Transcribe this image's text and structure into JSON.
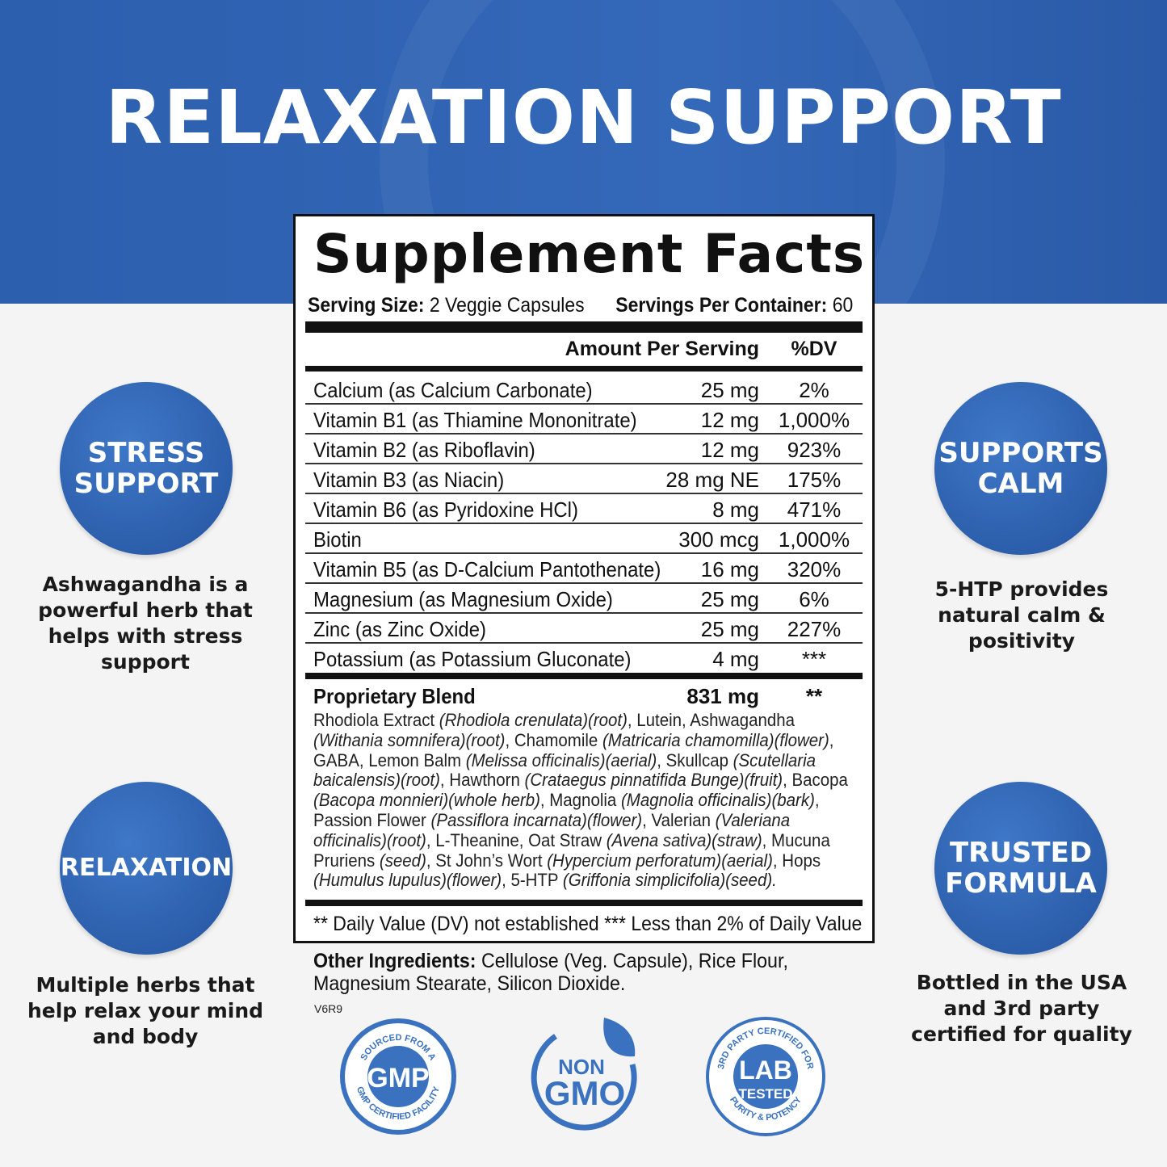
{
  "title": "RELAXATION SUPPORT",
  "facts": {
    "heading": "Supplement Facts",
    "serving_size_label": "Serving Size:",
    "serving_size": "2 Veggie Capsules",
    "servings_label": "Servings Per Container:",
    "servings": "60",
    "col_amount": "Amount Per Serving",
    "col_dv": "%DV",
    "rows": [
      {
        "name": "Calcium (as Calcium Carbonate)",
        "amount": "25 mg",
        "dv": "2%"
      },
      {
        "name": "Vitamin B1 (as Thiamine Mononitrate)",
        "amount": "12 mg",
        "dv": "1,000%"
      },
      {
        "name": "Vitamin B2 (as Riboflavin)",
        "amount": "12 mg",
        "dv": "923%"
      },
      {
        "name": "Vitamin B3 (as Niacin)",
        "amount": "28 mg NE",
        "dv": "175%"
      },
      {
        "name": "Vitamin B6 (as Pyridoxine HCl)",
        "amount": "8 mg",
        "dv": "471%"
      },
      {
        "name": "Biotin",
        "amount": "300 mcg",
        "dv": "1,000%"
      },
      {
        "name": "Vitamin B5 (as D-Calcium Pantothenate)",
        "amount": "16 mg",
        "dv": "320%"
      },
      {
        "name": "Magnesium (as Magnesium Oxide)",
        "amount": "25 mg",
        "dv": "6%"
      },
      {
        "name": "Zinc (as Zinc Oxide)",
        "amount": "25 mg",
        "dv": "227%"
      },
      {
        "name": "Potassium (as Potassium Gluconate)",
        "amount": "4 mg",
        "dv": "***"
      }
    ],
    "blend_name": "Proprietary Blend",
    "blend_amount": "831 mg",
    "blend_dv": "**",
    "blend_segments": [
      {
        "t": "Rhodiola Extract ",
        "i": false
      },
      {
        "t": "(Rhodiola crenulata)(root)",
        "i": true
      },
      {
        "t": ", Lutein, Ashwagandha ",
        "i": false
      },
      {
        "t": "(Withania somnifera)(root)",
        "i": true
      },
      {
        "t": ", Chamomile ",
        "i": false
      },
      {
        "t": "(Matricaria chamomilla)(flower)",
        "i": true
      },
      {
        "t": ", GABA, Lemon Balm ",
        "i": false
      },
      {
        "t": "(Melissa officinalis)(aerial)",
        "i": true
      },
      {
        "t": ", Skullcap ",
        "i": false
      },
      {
        "t": "(Scutellaria baicalensis)(root)",
        "i": true
      },
      {
        "t": ", Hawthorn ",
        "i": false
      },
      {
        "t": "(Crataegus pinnatifida Bunge)(fruit)",
        "i": true
      },
      {
        "t": ", Bacopa ",
        "i": false
      },
      {
        "t": "(Bacopa monnieri)(whole herb)",
        "i": true
      },
      {
        "t": ", Magnolia ",
        "i": false
      },
      {
        "t": "(Magnolia officinalis)(bark)",
        "i": true
      },
      {
        "t": ", Passion Flower ",
        "i": false
      },
      {
        "t": "(Passiflora incarnata)(flower)",
        "i": true
      },
      {
        "t": ", Valerian ",
        "i": false
      },
      {
        "t": "(Valeriana officinalis)(root)",
        "i": true
      },
      {
        "t": ", L-Theanine, Oat Straw ",
        "i": false
      },
      {
        "t": "(Avena sativa)(straw)",
        "i": true
      },
      {
        "t": ", Mucuna Pruriens ",
        "i": false
      },
      {
        "t": "(seed)",
        "i": true
      },
      {
        "t": ", St John’s Wort ",
        "i": false
      },
      {
        "t": "(Hypercium perforatum)(aerial)",
        "i": true
      },
      {
        "t": ", Hops ",
        "i": false
      },
      {
        "t": "(Humulus lupulus)(flower)",
        "i": true
      },
      {
        "t": ", 5-HTP ",
        "i": false
      },
      {
        "t": "(Griffonia simplicifolia)(seed).",
        "i": true
      }
    ],
    "footnote": "** Daily Value (DV) not established *** Less than 2% of Daily Value"
  },
  "other_label": "Other Ingredients:",
  "other_text": "Cellulose (Veg. Capsule), Rice Flour, Magnesium Stearate, Silicon Dioxide.",
  "code": "V6R9",
  "features": [
    {
      "badge": "STRESS SUPPORT",
      "text": "Ashwagandha is a powerful herb that helps with stress support"
    },
    {
      "badge": "RELAXATION",
      "text": "Multiple herbs that help relax your mind and body"
    },
    {
      "badge": "SUPPORTS CALM",
      "text": "5-HTP provides natural calm & positivity"
    },
    {
      "badge": "TRUSTED FORMULA",
      "text": "Bottled in the USA and 3rd party certified for quality"
    }
  ],
  "seals": {
    "gmp": {
      "top": "SOURCED FROM A",
      "center": "GMP",
      "bottom": "GMP CERTIFIED FACILITY"
    },
    "nongmo": {
      "line1": "NON",
      "line2": "GMO"
    },
    "lab": {
      "top": "3RD PARTY CERTIFIED FOR",
      "line1": "LAB",
      "line2": "TESTED",
      "bottom": "PURITY & POTENCY"
    }
  },
  "colors": {
    "brand_blue": "#2f63b0",
    "seal_blue": "#3a72bf"
  }
}
